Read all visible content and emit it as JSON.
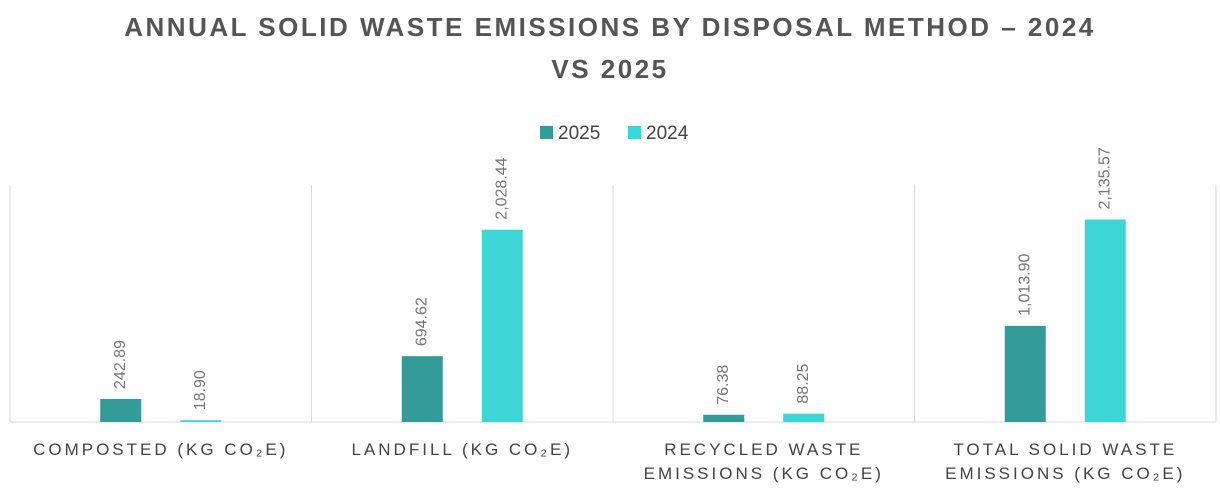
{
  "chart_data": {
    "type": "bar",
    "title": "ANNUAL SOLID WASTE EMISSIONS BY DISPOSAL METHOD – 2024 VS 2025",
    "categories": [
      "COMPOSTED (KG CO₂E)",
      "LANDFILL (KG CO₂E)",
      "RECYCLED WASTE EMISSIONS (KG CO₂E)",
      "TOTAL SOLID WASTE EMISSIONS (KG CO₂E)"
    ],
    "series": [
      {
        "name": "2025",
        "color": "#339b98",
        "values": [
          242.89,
          694.62,
          76.38,
          1013.9
        ],
        "value_labels": [
          "242.89",
          "694.62",
          "76.38",
          "1,013.90"
        ]
      },
      {
        "name": "2024",
        "color": "#3dd6d6",
        "values": [
          18.9,
          2028.44,
          88.25,
          2135.57
        ],
        "value_labels": [
          "18.90",
          "2,028.44",
          "88.25",
          "2,135.57"
        ]
      }
    ],
    "ylim": [
      0,
      2500
    ],
    "legend": "top"
  }
}
